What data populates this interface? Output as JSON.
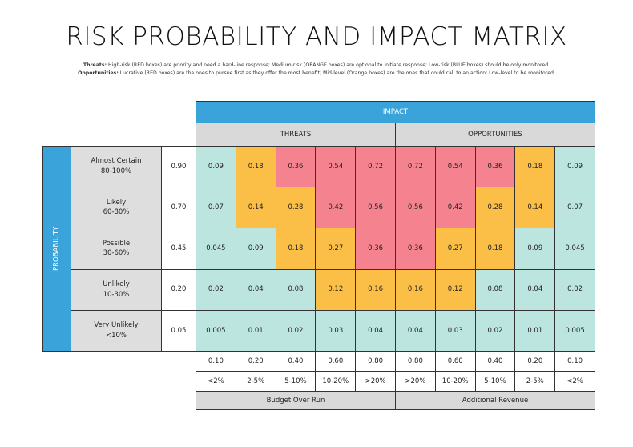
{
  "title": "RISK PROBABILITY AND IMPACT MATRIX",
  "notes": [
    {
      "label": "Threats:",
      "text": "High-risk (RED boxes) are priority and need a hard-line response; Medium-risk (ORANGE boxes) are optional to initiate response; Low-risk (BLUE boxes) should be only monitored."
    },
    {
      "label": "Opportunities:",
      "text": "Lucrative (RED boxes) are the ones to pursue first as they offer the most benefit; Mid-level (Orange boxes) are the ones that could call to an action; Low-level to be monitored."
    }
  ],
  "matrix": {
    "header": "IMPACT",
    "groups": [
      "THREATS",
      "OPPORTUNITIES"
    ],
    "axis_label": "PROBABILITY",
    "rows": [
      {
        "name": "Almost Certain",
        "range": "80-100%",
        "probability": "0.90",
        "cells": [
          {
            "value": "0.09",
            "color": "#bde5df"
          },
          {
            "value": "0.18",
            "color": "#fbbf47"
          },
          {
            "value": "0.36",
            "color": "#f5838f"
          },
          {
            "value": "0.54",
            "color": "#f5838f"
          },
          {
            "value": "0.72",
            "color": "#f5838f"
          },
          {
            "value": "0.72",
            "color": "#f5838f"
          },
          {
            "value": "0.54",
            "color": "#f5838f"
          },
          {
            "value": "0.36",
            "color": "#f5838f"
          },
          {
            "value": "0.18",
            "color": "#fbbf47"
          },
          {
            "value": "0.09",
            "color": "#bde5df"
          }
        ]
      },
      {
        "name": "Likely",
        "range": "60-80%",
        "probability": "0.70",
        "cells": [
          {
            "value": "0.07",
            "color": "#bde5df"
          },
          {
            "value": "0.14",
            "color": "#fbbf47"
          },
          {
            "value": "0.28",
            "color": "#fbbf47"
          },
          {
            "value": "0.42",
            "color": "#f5838f"
          },
          {
            "value": "0.56",
            "color": "#f5838f"
          },
          {
            "value": "0.56",
            "color": "#f5838f"
          },
          {
            "value": "0.42",
            "color": "#f5838f"
          },
          {
            "value": "0.28",
            "color": "#fbbf47"
          },
          {
            "value": "0.14",
            "color": "#fbbf47"
          },
          {
            "value": "0.07",
            "color": "#bde5df"
          }
        ]
      },
      {
        "name": "Possible",
        "range": "30-60%",
        "probability": "0.45",
        "cells": [
          {
            "value": "0.045",
            "color": "#bde5df"
          },
          {
            "value": "0.09",
            "color": "#bde5df"
          },
          {
            "value": "0.18",
            "color": "#fbbf47"
          },
          {
            "value": "0.27",
            "color": "#fbbf47"
          },
          {
            "value": "0.36",
            "color": "#f5838f"
          },
          {
            "value": "0.36",
            "color": "#f5838f"
          },
          {
            "value": "0.27",
            "color": "#fbbf47"
          },
          {
            "value": "0.18",
            "color": "#fbbf47"
          },
          {
            "value": "0.09",
            "color": "#bde5df"
          },
          {
            "value": "0.045",
            "color": "#bde5df"
          }
        ]
      },
      {
        "name": "Unlikely",
        "range": "10-30%",
        "probability": "0.20",
        "cells": [
          {
            "value": "0.02",
            "color": "#bde5df"
          },
          {
            "value": "0.04",
            "color": "#bde5df"
          },
          {
            "value": "0.08",
            "color": "#bde5df"
          },
          {
            "value": "0.12",
            "color": "#fbbf47"
          },
          {
            "value": "0.16",
            "color": "#fbbf47"
          },
          {
            "value": "0.16",
            "color": "#fbbf47"
          },
          {
            "value": "0.12",
            "color": "#fbbf47"
          },
          {
            "value": "0.08",
            "color": "#bde5df"
          },
          {
            "value": "0.04",
            "color": "#bde5df"
          },
          {
            "value": "0.02",
            "color": "#bde5df"
          }
        ]
      },
      {
        "name": "Very Unlikely",
        "range": "<10%",
        "probability": "0.05",
        "cells": [
          {
            "value": "0.005",
            "color": "#bde5df"
          },
          {
            "value": "0.01",
            "color": "#bde5df"
          },
          {
            "value": "0.02",
            "color": "#bde5df"
          },
          {
            "value": "0.03",
            "color": "#bde5df"
          },
          {
            "value": "0.04",
            "color": "#bde5df"
          },
          {
            "value": "0.04",
            "color": "#bde5df"
          },
          {
            "value": "0.03",
            "color": "#bde5df"
          },
          {
            "value": "0.02",
            "color": "#bde5df"
          },
          {
            "value": "0.01",
            "color": "#bde5df"
          },
          {
            "value": "0.005",
            "color": "#bde5df"
          }
        ]
      }
    ],
    "impact_values": [
      "0.10",
      "0.20",
      "0.40",
      "0.60",
      "0.80",
      "0.80",
      "0.60",
      "0.40",
      "0.20",
      "0.10"
    ],
    "impact_ranges": [
      "<2%",
      "2-5%",
      "5-10%",
      "10-20%",
      ">20%",
      ">20%",
      "10-20%",
      "5-10%",
      "2-5%",
      "<2%"
    ],
    "footers": [
      "Budget Over Run",
      "Additional Revenue"
    ]
  }
}
